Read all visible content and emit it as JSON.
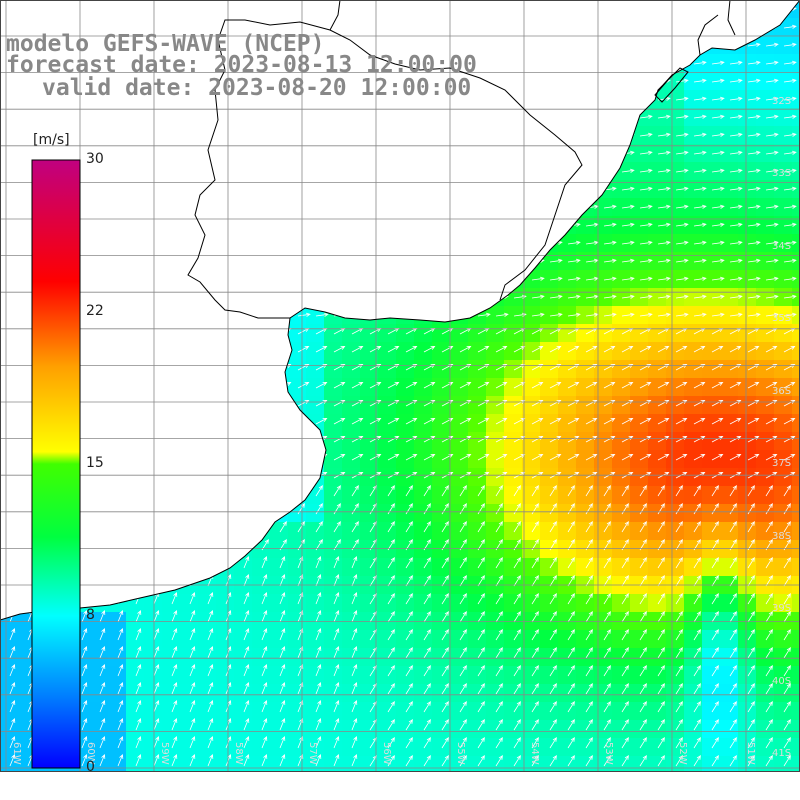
{
  "title": {
    "line1": "modelo GEFS-WAVE (NCEP)",
    "line2": "forecast date: 2023-08-13 12:00:00",
    "line3": "valid date: 2023-08-20 12:00:00"
  },
  "colorbar": {
    "unit": "[m/s]",
    "ticks": [
      "30",
      "22",
      "15",
      "8",
      "0"
    ],
    "colors": [
      "#0000ff",
      "#00aaff",
      "#00ffff",
      "#00ff00",
      "#ffff00",
      "#ff8800",
      "#ff0000",
      "#c00080"
    ]
  },
  "map": {
    "lat_labels": [
      "32S",
      "33S",
      "34S",
      "35S",
      "36S",
      "37S",
      "38S",
      "39S",
      "40S",
      "41S"
    ],
    "lon_labels": [
      "61W",
      "60W",
      "59W",
      "58W",
      "57W",
      "56W",
      "55W",
      "54W",
      "53W",
      "52W",
      "51W"
    ],
    "land_color": "#ffffff",
    "grid_color": "#888888",
    "arrow_color": "#ffffff",
    "icons": [
      "wind-arrow-icon"
    ]
  }
}
